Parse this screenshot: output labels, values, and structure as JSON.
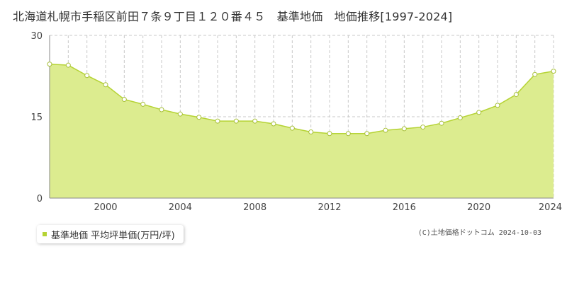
{
  "chart_data": {
    "type": "area",
    "title": "北海道札幌市手稲区前田７条９丁目１２０番４５　基準地価　地価推移[1997-2024]",
    "x": [
      1997,
      1998,
      1999,
      2000,
      2001,
      2002,
      2003,
      2004,
      2005,
      2006,
      2007,
      2008,
      2009,
      2010,
      2011,
      2012,
      2013,
      2014,
      2015,
      2016,
      2017,
      2018,
      2019,
      2020,
      2021,
      2022,
      2023,
      2024
    ],
    "series": [
      {
        "name": "基準地価 平均坪単価(万円/坪)",
        "values": [
          24.7,
          24.5,
          22.6,
          20.9,
          18.2,
          17.3,
          16.3,
          15.5,
          14.9,
          14.2,
          14.2,
          14.2,
          13.7,
          12.9,
          12.2,
          11.9,
          11.9,
          11.9,
          12.5,
          12.8,
          13.1,
          13.8,
          14.8,
          15.8,
          17.1,
          19.1,
          22.8,
          23.4
        ]
      }
    ],
    "xlim": [
      1997,
      2024
    ],
    "ylim": [
      0,
      30
    ],
    "y_ticks": [
      0,
      15,
      30
    ],
    "x_ticks": [
      2000,
      2004,
      2008,
      2012,
      2016,
      2020,
      2024
    ],
    "grid": true,
    "colors": {
      "fill": "#dcec8f",
      "line": "#b5d334",
      "point_fill": "#ffffff",
      "point_stroke": "#a8c03a",
      "grid": "#c8c8c8"
    },
    "legend_placement": "bottom-left"
  },
  "copyright": "(C)土地価格ドットコム 2024-10-03"
}
